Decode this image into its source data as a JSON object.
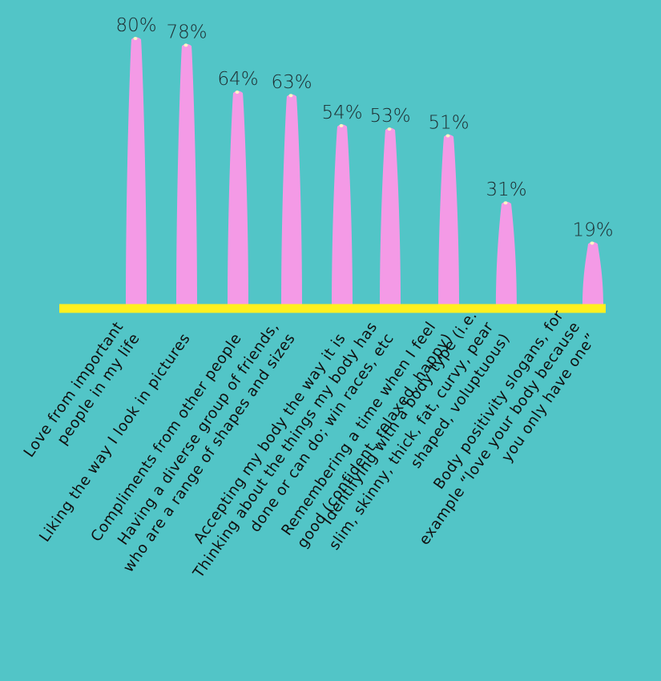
{
  "colors": {
    "background": "#52c5c7",
    "bar": "#f49ae6",
    "bar_tip": "#fff3c4",
    "baseline": "#fff01f",
    "text": "#101010"
  },
  "chart_data": {
    "type": "bar",
    "title": "",
    "xlabel": "",
    "ylabel": "",
    "ylim": [
      0,
      80
    ],
    "grid": false,
    "value_suffix": "%",
    "categories": [
      [
        "Love from important",
        "people in my life"
      ],
      [
        "Liking the way I look in pictures"
      ],
      [
        "Compliments from other people"
      ],
      [
        "Having a diverse group of friends,",
        "who are a range of shapes and sizes"
      ],
      [
        "Accepting my body the way it is"
      ],
      [
        "Thinking about the things my body has",
        "done or can do; win races, etc"
      ],
      [
        "Remembering a time when I feel",
        "good (confident, relaxed, happy)"
      ],
      [
        "Identifying with a body type (i.e.",
        "slim, skinny, thick, fat, curvy, pear",
        "shaped, voluptuous)"
      ],
      [
        "Body positivity slogans, for",
        "example “love your body because",
        "you only have one”"
      ]
    ],
    "values": [
      80,
      78,
      64,
      63,
      54,
      53,
      51,
      31,
      19
    ],
    "value_labels": [
      "80%",
      "78%",
      "64%",
      "63%",
      "54%",
      "53%",
      "51%",
      "31%",
      "19%"
    ]
  }
}
